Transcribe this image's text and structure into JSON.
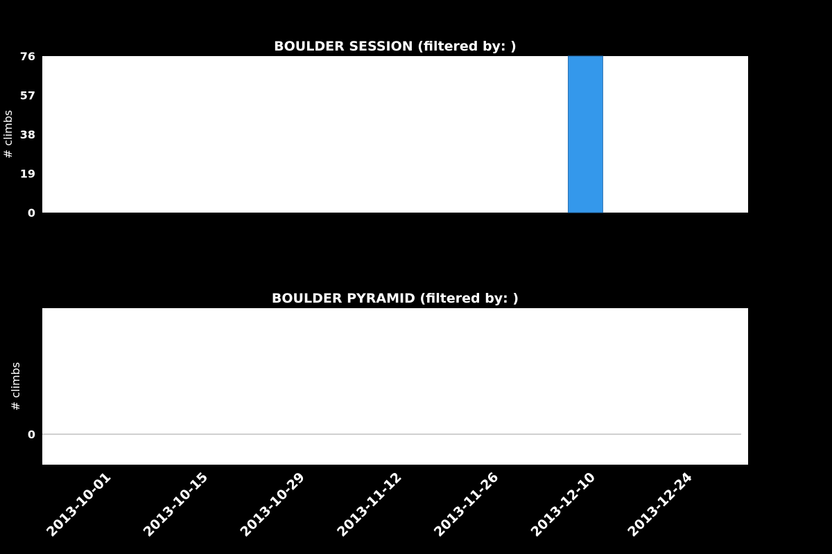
{
  "chart_data": [
    {
      "type": "bar",
      "title": "BOULDER SESSION (filtered by: )",
      "ylabel": "# climbs",
      "xlabel": "",
      "ylim": [
        0,
        76
      ],
      "yticks": [
        "0",
        "19",
        "38",
        "57",
        "76"
      ],
      "xlim": [
        "2013-09-26",
        "2014-01-06"
      ],
      "bar_color": "#3498eb",
      "bars": [
        {
          "start": "2013-12-11",
          "end": "2013-12-16",
          "value": 76
        }
      ]
    },
    {
      "type": "line",
      "title": "BOULDER PYRAMID (filtered by: )",
      "ylabel": "# climbs",
      "xlabel": "",
      "yticks": [
        "0"
      ],
      "xlim": [
        "2013-09-26",
        "2014-01-06"
      ],
      "line_color": "#c0c0c0",
      "series": [
        {
          "x": [
            "2013-09-26",
            "2014-01-05"
          ],
          "values": [
            0,
            0
          ]
        }
      ]
    }
  ],
  "x_axis": {
    "tick_labels": [
      "2013-10-01",
      "2013-10-15",
      "2013-10-29",
      "2013-11-12",
      "2013-11-26",
      "2013-12-10",
      "2013-12-24"
    ]
  }
}
